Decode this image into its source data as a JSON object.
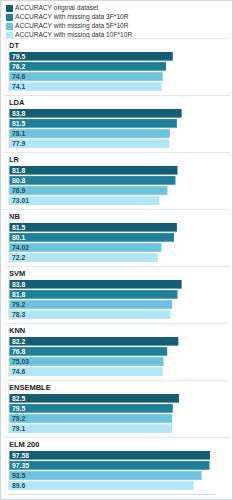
{
  "chart_data": {
    "type": "bar",
    "orientation": "horizontal",
    "data_labels": true,
    "tick_labels": false,
    "legend": "top",
    "categories": [
      "DT",
      "LDA",
      "LR",
      "NB",
      "SVM",
      "KNN",
      "ENSEMBLE",
      "ELM 200"
    ],
    "xlim": [
      0,
      100
    ],
    "series": [
      {
        "name": "ACCURACY original dataset",
        "color": "#145e74",
        "values": [
          79.5,
          83.8,
          81.8,
          81.5,
          83.8,
          82.2,
          82.5,
          97.58
        ]
      },
      {
        "name": "ACCURACY with missing data 3F*10R",
        "color": "#1d809b",
        "values": [
          76.2,
          81.5,
          80.8,
          80.1,
          81.8,
          76.8,
          79.5,
          97.35
        ]
      },
      {
        "name": "ACCURACY with missing data 5F*10R",
        "color": "#6cc3de",
        "values": [
          74.6,
          78.1,
          76.9,
          74.02,
          79.2,
          75.03,
          79.2,
          93.5
        ]
      },
      {
        "name": "ACCURACY with missing data 10F*10R",
        "color": "#b0e6f5",
        "values": [
          74.1,
          77.9,
          73.01,
          72.2,
          78.3,
          74.6,
          79.1,
          89.6
        ]
      }
    ]
  }
}
